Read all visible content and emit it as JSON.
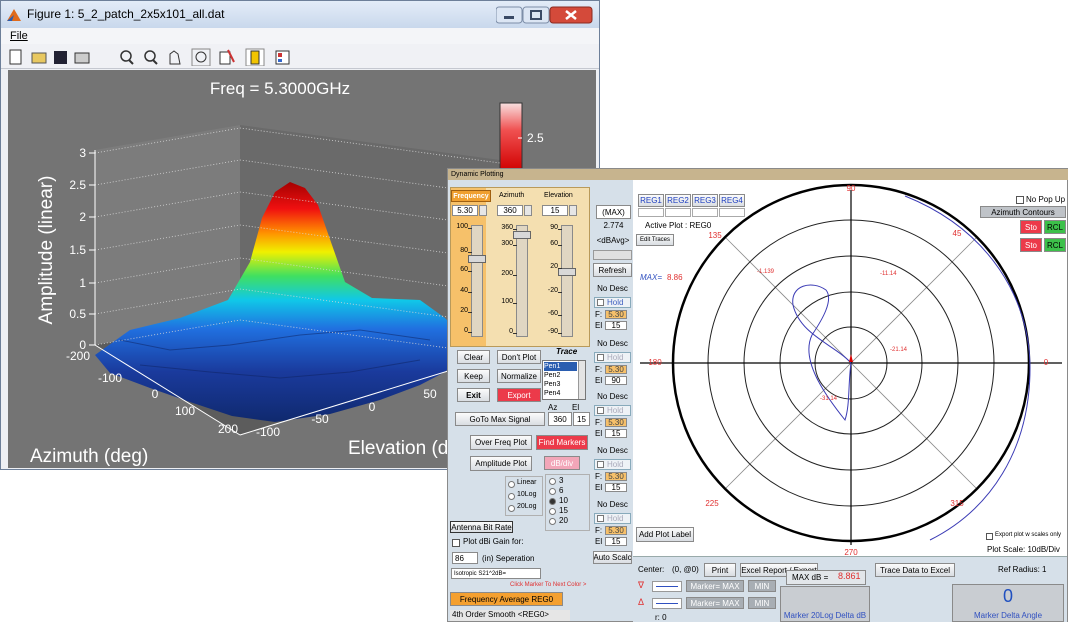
{
  "figure_window": {
    "title": "Figure 1: 5_2_patch_2x5x101_all.dat",
    "menu": [
      "File"
    ],
    "plot": {
      "title": "Freq = 5.3000GHz",
      "z_label": "Amplitude (linear)",
      "x_label": "Azimuth (deg)",
      "y_label": "Elevation (deg)",
      "z_ticks": [
        "0",
        "0.5",
        "1",
        "1.5",
        "2",
        "2.5",
        "3"
      ],
      "x_ticks": [
        "-200",
        "-100",
        "0",
        "100",
        "200"
      ],
      "y_ticks": [
        "-100",
        "-50",
        "0",
        "50"
      ],
      "colorbar_ticks": [
        "2.5"
      ]
    }
  },
  "dynamic_window": {
    "title": "Dynamic Plotting",
    "sliders": [
      {
        "label": "Frequency",
        "value": "5.30",
        "ticks": [
          "100",
          "80",
          "60",
          "40",
          "20",
          "0"
        ]
      },
      {
        "label": "Azimuth",
        "value": "360",
        "ticks": [
          "360",
          "300",
          "200",
          "100",
          "0"
        ]
      },
      {
        "label": "Elevation",
        "value": "15",
        "ticks": [
          "90",
          "60",
          "20",
          "-20",
          "-60",
          "-90"
        ]
      }
    ],
    "buttons": {
      "clear": "Clear",
      "dont_plot": "Don't Plot",
      "keep": "Keep",
      "normalize": "Normalize",
      "exit": "Exit",
      "export": "Export",
      "goto": "GoTo Max Signal",
      "over_freq": "Over Freq Plot",
      "find_markers": "Find Markers",
      "amplitude_plot": "Amplitude Plot",
      "dbdiv": "dB/div",
      "refresh": "Refresh",
      "edit_traces": "Edit Traces",
      "add_plot_label": "Add Plot Label",
      "print": "Print",
      "excel": "Excel Report / Export",
      "trace_excel": "Trace Data to Excel",
      "auto_scale": "Auto Scalc",
      "antenna_bit_rate": "Antenna Bit Rate",
      "freq_avg": "Frequency Average REG0",
      "smooth": "4th Order Smooth <REG0>"
    },
    "trace": {
      "label": "Trace",
      "pens": [
        "Pen1",
        "Pen2",
        "Pen3",
        "Pen4"
      ]
    },
    "goto": {
      "az_label": "Az",
      "el_label": "El",
      "az": "360",
      "el": "15"
    },
    "scales": [
      "Linear",
      "10Log",
      "20Log"
    ],
    "dbdiv_options": [
      "3",
      "6",
      "10",
      "15",
      "20"
    ],
    "gain": {
      "checkbox": "Plot dBi Gain for:",
      "separation_value": "86",
      "separation_label": "(in) Seperation",
      "isotropic": "Isotropic S21^2dB=",
      "click_marker": "Click Marker To Next Color >"
    },
    "status": {
      "max_label": "(MAX)",
      "max_value": "2.774",
      "avg": "<dBAvg>"
    },
    "traces": [
      {
        "desc": "No Desc",
        "hold": "Hold",
        "f_label": "F:",
        "f": "5.30",
        "el_label": "El",
        "el": "15"
      },
      {
        "desc": "No Desc",
        "hold": "Hold",
        "f_label": "F:",
        "f": "5.30",
        "el_label": "El",
        "el": "90"
      },
      {
        "desc": "No Desc",
        "hold": "Hold",
        "f_label": "F:",
        "f": "5.30",
        "el_label": "El",
        "el": "15"
      },
      {
        "desc": "No Desc",
        "hold": "Hold",
        "f_label": "F:",
        "f": "5.30",
        "el_label": "El",
        "el": "15"
      },
      {
        "desc": "No Desc",
        "hold": "Hold",
        "f_label": "F:",
        "f": "5.30",
        "el_label": "El",
        "el": "15"
      }
    ],
    "polar": {
      "regs": [
        "REG1",
        "REG2",
        "REG3",
        "REG4"
      ],
      "active": "Active Plot : REG0",
      "max_label": "MAX=",
      "max_value": "8.86",
      "no_popup": "No Pop Up",
      "contours": "Azimuth Contours",
      "memory": [
        {
          "sto": "Sto",
          "rcl": "RCL"
        },
        {
          "sto": "Sto",
          "rcl": "RCL"
        }
      ],
      "angles": [
        "90",
        "45",
        "0",
        "315",
        "270",
        "225",
        "180",
        "135"
      ],
      "rings": [
        "-1.139",
        "-11.14",
        "-21.14",
        "-31.14"
      ],
      "export_scales": "Export plot w scales only",
      "plot_scale": "Plot Scale: 10dB/Div"
    },
    "bottom": {
      "center_label": "Center:",
      "center_value": "(0, @0)",
      "max_db_label": "MAX dB =",
      "max_db": "8.861",
      "ref_radius": "Ref Radius: 1",
      "delta_angle_value": "0",
      "delta_db_label": "Marker 20Log Delta dB",
      "delta_angle_label": "Marker Delta Angle",
      "markers": [
        {
          "symbol": "∇",
          "select": "Marker= MAX",
          "min": "MIN"
        },
        {
          "symbol": "Δ",
          "select": "Marker= MAX",
          "min": "MIN"
        }
      ],
      "r": "r: 0"
    }
  }
}
